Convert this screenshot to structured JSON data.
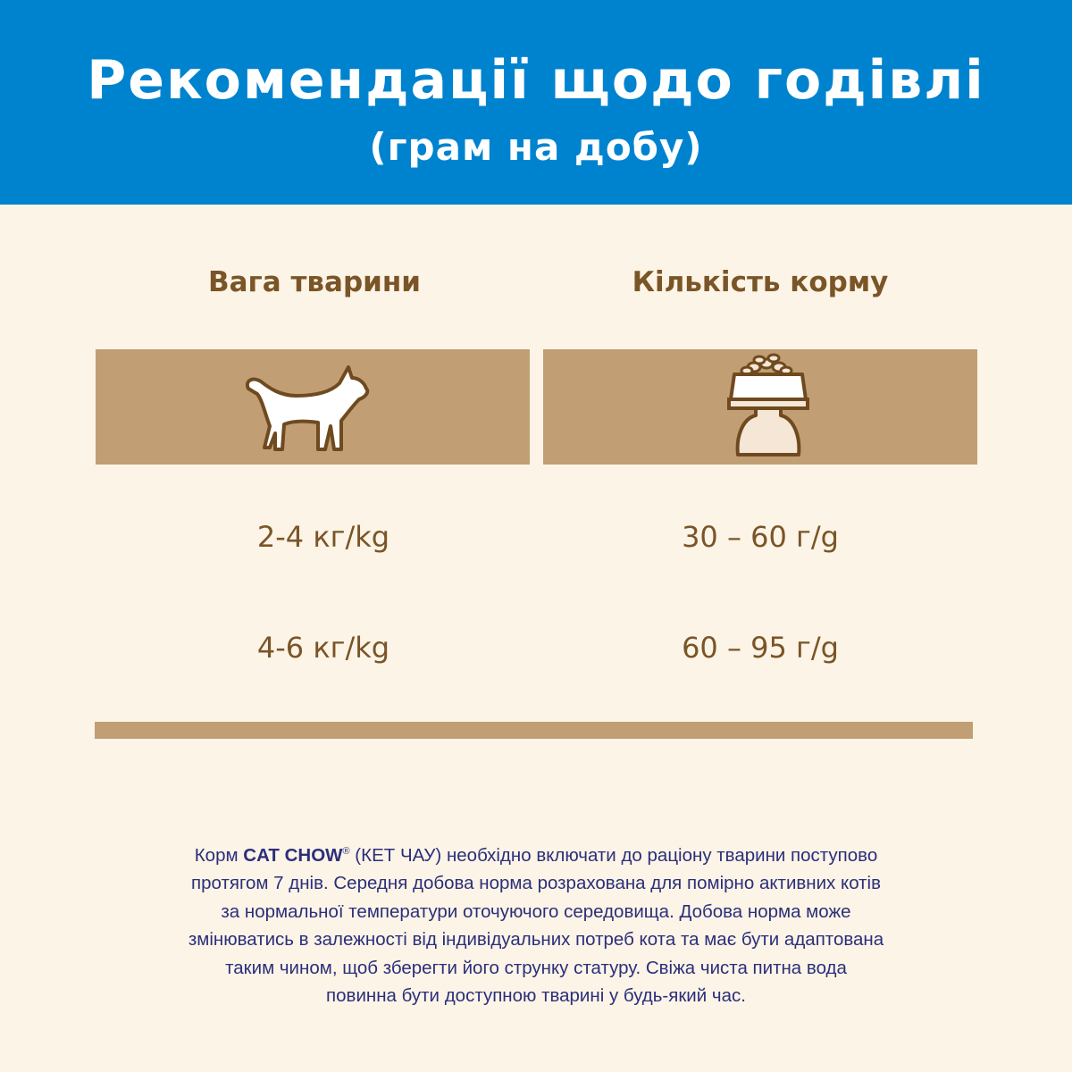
{
  "header": {
    "title": "Рекомендації щодо годівлі",
    "subtitle": "(грам на добу)",
    "background_color": "#0083cf"
  },
  "table": {
    "columns": [
      {
        "label": "Вага тварини",
        "icon": "cat-icon"
      },
      {
        "label": "Кількість корму",
        "icon": "food-bowl-icon"
      }
    ],
    "rows": [
      {
        "weight": "2-4 кг/kg",
        "amount": "30 – 60 г/g"
      },
      {
        "weight": "4-6 кг/kg",
        "amount": "60 – 95 г/g"
      }
    ],
    "accent_color": "#c19e74",
    "text_color": "#7a5527"
  },
  "note": {
    "prefix": "Корм ",
    "brand": "CAT CHOW",
    "registered": "®",
    "line1_rest": " (КЕТ ЧАУ) необхідно включати до раціону тварини поступово",
    "lines": [
      "протягом 7 днів. Середня добова норма розрахована для помірно активних котів",
      "за нормальної температури оточуючого середовища. Добова норма може",
      "змінюватись в залежності від індивідуальних потреб кота та має бути адаптована",
      "таким чином, щоб зберегти його струнку статуру. Свіжа чиста питна вода",
      "повинна бути доступною тварині у будь-який час."
    ],
    "text_color": "#2b2f7b"
  }
}
